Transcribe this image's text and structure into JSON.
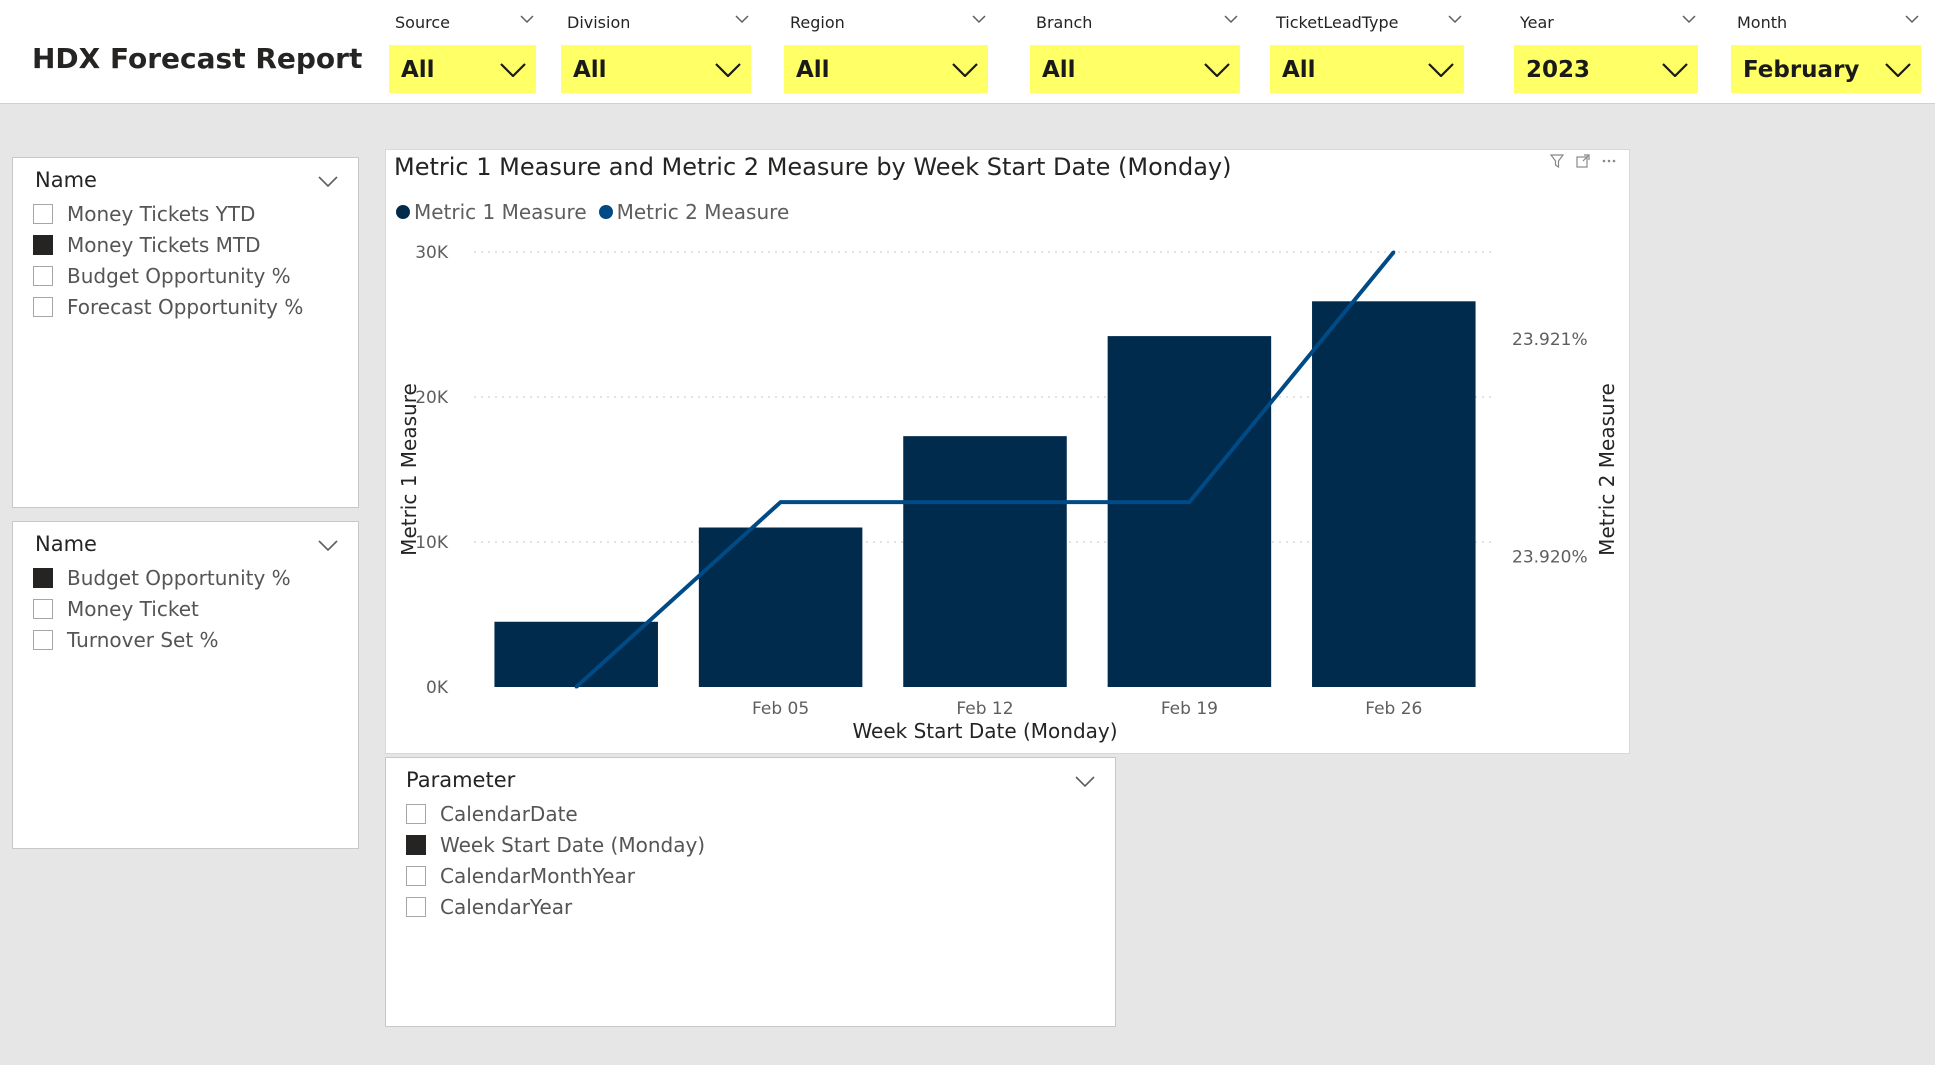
{
  "report": {
    "title": "HDX Forecast Report"
  },
  "filters": [
    {
      "label": "Source",
      "value": "All"
    },
    {
      "label": "Division",
      "value": "All"
    },
    {
      "label": "Region",
      "value": "All"
    },
    {
      "label": "Branch",
      "value": "All"
    },
    {
      "label": "TicketLeadType",
      "value": "All"
    },
    {
      "label": "Year",
      "value": "2023"
    },
    {
      "label": "Month",
      "value": "February"
    }
  ],
  "slicer1": {
    "title": "Name",
    "items": [
      {
        "label": "Money Tickets YTD",
        "checked": false
      },
      {
        "label": "Money Tickets MTD",
        "checked": true
      },
      {
        "label": "Budget Opportunity %",
        "checked": false
      },
      {
        "label": "Forecast Opportunity %",
        "checked": false
      }
    ]
  },
  "slicer2": {
    "title": "Name",
    "items": [
      {
        "label": "Budget Opportunity %",
        "checked": true
      },
      {
        "label": "Money Ticket",
        "checked": false
      },
      {
        "label": "Turnover Set %",
        "checked": false
      }
    ]
  },
  "slicer3": {
    "title": "Parameter",
    "items": [
      {
        "label": "CalendarDate",
        "checked": false
      },
      {
        "label": "Week Start Date (Monday)",
        "checked": true
      },
      {
        "label": "CalendarMonthYear",
        "checked": false
      },
      {
        "label": "CalendarYear",
        "checked": false
      }
    ]
  },
  "colors": {
    "bar": "#002b4d",
    "line": "#004a85",
    "filter_bg": "#ffff66"
  },
  "chart_data": {
    "type": "bar",
    "title": "Metric 1 Measure and Metric 2 Measure by Week Start Date (Monday)",
    "xlabel": "Week Start Date (Monday)",
    "ylabel": "Metric 1 Measure",
    "y2label": "Metric 2 Measure",
    "legend": "top-left",
    "grid": true,
    "categories": [
      "",
      "Feb 05",
      "Feb 12",
      "Feb 19",
      "Feb 26"
    ],
    "ylim": [
      0,
      30000
    ],
    "yticks": [
      0,
      10000,
      20000,
      30000
    ],
    "ytick_labels": [
      "0K",
      "10K",
      "20K",
      "30K"
    ],
    "y2lim": [
      23.9194,
      23.9214
    ],
    "y2ticks": [
      23.92,
      23.921
    ],
    "y2tick_labels": [
      "23.920%",
      "23.921%"
    ],
    "series": [
      {
        "name": "Metric 1 Measure",
        "type": "bar",
        "axis": "left",
        "values": [
          4500,
          11000,
          17300,
          24200,
          26600
        ]
      },
      {
        "name": "Metric 2 Measure",
        "type": "line",
        "axis": "right",
        "values": [
          23.9194,
          23.92025,
          23.92025,
          23.92025,
          23.9214
        ]
      }
    ]
  }
}
